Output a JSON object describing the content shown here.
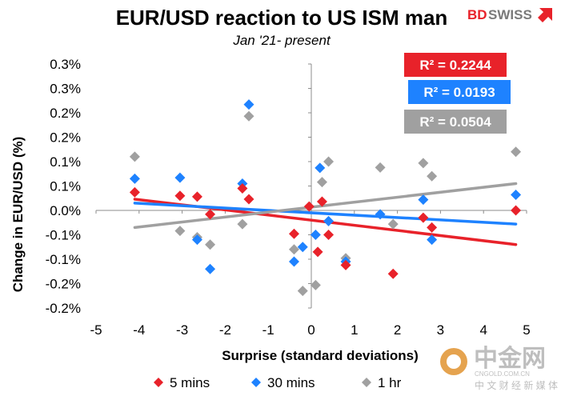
{
  "chart_data": {
    "type": "scatter",
    "title": "EUR/USD reaction to US ISM man",
    "subtitle": "Jan '21- present",
    "xlabel": "Surprise (standard deviations)",
    "ylabel": "Change in EUR/USD  (%)",
    "xlim": [
      -5,
      5
    ],
    "ylim": [
      -0.2,
      0.3
    ],
    "xticks": [
      "-5",
      "-4",
      "-3",
      "-2",
      "-1",
      "0",
      "1",
      "2",
      "3",
      "4",
      "5"
    ],
    "yticks": [
      "0.3%",
      "0.3%",
      "0.2%",
      "0.2%",
      "0.1%",
      "0.1%",
      "0.0%",
      "-0.1%",
      "-0.1%",
      "-0.2%",
      "-0.2%"
    ],
    "grid": false,
    "legend_position": "bottom",
    "series": [
      {
        "name": "5 mins",
        "color": "#e8222a",
        "marker": "diamond",
        "x": [
          -4.1,
          -3.05,
          -2.65,
          -2.35,
          -1.6,
          -1.45,
          -0.05,
          0.25,
          0.4,
          0.8,
          1.9,
          2.6,
          2.8,
          4.75,
          -0.4,
          0.15
        ],
        "y": [
          0.037,
          0.03,
          0.028,
          -0.008,
          0.045,
          0.023,
          0.008,
          0.018,
          -0.05,
          -0.112,
          -0.13,
          -0.015,
          -0.035,
          0.0,
          -0.048,
          -0.085
        ],
        "trendline_r2": "R² = 0.2244",
        "trendline": {
          "x": [
            -4.1,
            4.75
          ],
          "y": [
            0.023,
            -0.07
          ]
        }
      },
      {
        "name": "30 mins",
        "color": "#1e82ff",
        "marker": "diamond",
        "x": [
          -4.1,
          -3.05,
          -2.65,
          -2.35,
          -1.6,
          -1.45,
          -0.4,
          -0.2,
          0.1,
          0.2,
          0.4,
          0.8,
          1.6,
          2.6,
          2.8,
          4.75
        ],
        "y": [
          0.065,
          0.067,
          -0.06,
          -0.12,
          0.055,
          0.217,
          -0.105,
          -0.075,
          -0.05,
          0.087,
          -0.022,
          -0.105,
          -0.008,
          0.022,
          -0.06,
          0.032
        ],
        "trendline_r2": "R² = 0.0193",
        "trendline": {
          "x": [
            -4.1,
            4.75
          ],
          "y": [
            0.015,
            -0.028
          ]
        }
      },
      {
        "name": "1 hr",
        "color": "#a0a0a0",
        "marker": "diamond",
        "x": [
          -4.1,
          -3.05,
          -2.65,
          -2.35,
          -1.6,
          -1.45,
          -0.4,
          -0.2,
          0.1,
          0.25,
          0.4,
          0.8,
          1.6,
          1.9,
          2.6,
          2.8,
          4.75
        ],
        "y": [
          0.11,
          -0.042,
          -0.055,
          -0.07,
          -0.028,
          0.193,
          -0.08,
          -0.165,
          -0.153,
          0.058,
          0.1,
          -0.098,
          0.088,
          -0.028,
          0.097,
          0.07,
          0.12
        ],
        "trendline_r2": "R² = 0.0504",
        "trendline": {
          "x": [
            -4.1,
            4.75
          ],
          "y": [
            -0.035,
            0.055
          ]
        }
      }
    ]
  },
  "branding": {
    "logo_bd": "BD",
    "logo_swiss": "SWISS",
    "watermark_cn": "中金网",
    "watermark_url": "CNGOLD.COM.CN",
    "watermark_sub": "中 文 财 经 新 媒 体",
    "colors": {
      "logo_red": "#e8222a",
      "logo_gray": "#7a7a7a",
      "watermark": "#b8b8b8"
    }
  }
}
